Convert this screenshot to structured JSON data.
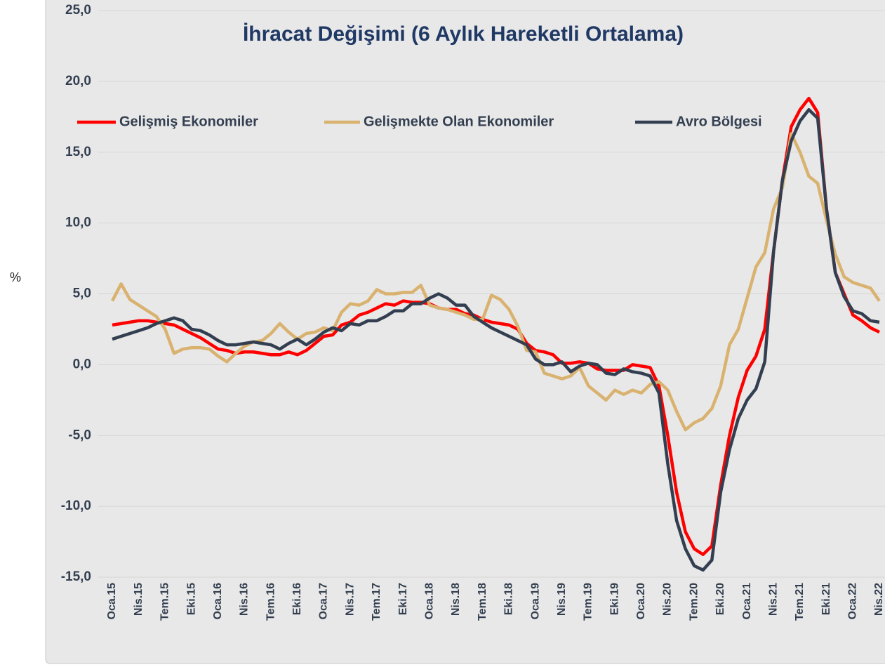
{
  "chart_data": {
    "type": "line",
    "title": "İhracat Değişimi (6 Aylık Hareketli Ortalama)",
    "y_label": "%",
    "categories": [
      "Oca.15",
      null,
      null,
      "Nis.15",
      null,
      null,
      "Tem.15",
      null,
      null,
      "Eki.15",
      null,
      null,
      "Oca.16",
      null,
      null,
      "Nis.16",
      null,
      null,
      "Tem.16",
      null,
      null,
      "Eki.16",
      null,
      null,
      "Oca.17",
      null,
      null,
      "Nis.17",
      null,
      null,
      "Tem.17",
      null,
      null,
      "Eki.17",
      null,
      null,
      "Oca.18",
      null,
      null,
      "Nis.18",
      null,
      null,
      "Tem.18",
      null,
      null,
      "Eki.18",
      null,
      null,
      "Oca.19",
      null,
      null,
      "Nis.19",
      null,
      null,
      "Tem.19",
      null,
      null,
      "Eki.19",
      null,
      null,
      "Oca.20",
      null,
      null,
      "Nis.20",
      null,
      null,
      "Tem.20",
      null,
      null,
      "Eki.20",
      null,
      null,
      "Oca.21",
      null,
      null,
      "Nis.21",
      null,
      null,
      "Tem.21",
      null,
      null,
      "Eki.21",
      null,
      null,
      "Oca.22",
      null,
      null,
      "Nis.22"
    ],
    "series": [
      {
        "name": "Gelişmiş Ekonomiler",
        "color": "#ff0000",
        "values": [
          2.8,
          2.9,
          3.0,
          3.1,
          3.1,
          3.0,
          2.9,
          2.8,
          2.5,
          2.2,
          1.9,
          1.5,
          1.1,
          1.0,
          0.8,
          0.9,
          0.9,
          0.8,
          0.7,
          0.7,
          0.9,
          0.7,
          1.0,
          1.5,
          2.0,
          2.1,
          2.8,
          3.0,
          3.5,
          3.7,
          4.0,
          4.3,
          4.2,
          4.5,
          4.4,
          4.4,
          4.3,
          4.0,
          3.9,
          3.9,
          3.6,
          3.5,
          3.2,
          3.0,
          2.9,
          2.8,
          2.5,
          1.5,
          1.0,
          0.9,
          0.7,
          0.1,
          0.1,
          0.2,
          0.1,
          -0.3,
          -0.4,
          -0.4,
          -0.4,
          0.0,
          -0.1,
          -0.2,
          -1.5,
          -5.0,
          -9.0,
          -11.8,
          -13.0,
          -13.4,
          -12.8,
          -8.5,
          -5.0,
          -2.3,
          -0.4,
          0.6,
          2.5,
          8.0,
          13.0,
          16.8,
          18.0,
          18.8,
          17.8,
          11.0,
          6.5,
          5.0,
          3.5,
          3.1,
          2.6,
          2.3
        ]
      },
      {
        "name": "Gelişmekte Olan Ekonomiler",
        "color": "#d9b26f",
        "values": [
          4.5,
          5.7,
          4.6,
          4.2,
          3.8,
          3.4,
          2.5,
          0.8,
          1.1,
          1.2,
          1.2,
          1.1,
          0.6,
          0.2,
          0.8,
          1.3,
          1.6,
          1.7,
          2.2,
          2.9,
          2.3,
          1.8,
          2.2,
          2.3,
          2.6,
          2.4,
          3.7,
          4.3,
          4.2,
          4.5,
          5.3,
          5.0,
          5.0,
          5.1,
          5.1,
          5.6,
          4.2,
          4.0,
          3.9,
          3.7,
          3.5,
          3.2,
          3.2,
          4.9,
          4.6,
          3.9,
          2.7,
          1.0,
          0.9,
          -0.6,
          -0.8,
          -1.0,
          -0.8,
          -0.2,
          -1.5,
          -2.0,
          -2.5,
          -1.8,
          -2.1,
          -1.8,
          -2.0,
          -1.4,
          -1.2,
          -1.8,
          -3.3,
          -4.6,
          -4.1,
          -3.8,
          -3.1,
          -1.5,
          1.4,
          2.5,
          4.7,
          6.9,
          7.9,
          11.0,
          12.5,
          16.3,
          15.0,
          13.3,
          12.8,
          10.2,
          7.8,
          6.2,
          5.8,
          5.6,
          5.4,
          4.5
        ]
      },
      {
        "name": "Avro Bölgesi",
        "color": "#333f50",
        "values": [
          1.8,
          2.0,
          2.2,
          2.4,
          2.6,
          2.9,
          3.1,
          3.3,
          3.1,
          2.5,
          2.4,
          2.1,
          1.7,
          1.4,
          1.4,
          1.5,
          1.6,
          1.5,
          1.4,
          1.1,
          1.5,
          1.8,
          1.4,
          1.8,
          2.3,
          2.6,
          2.4,
          2.9,
          2.8,
          3.1,
          3.1,
          3.4,
          3.8,
          3.8,
          4.3,
          4.3,
          4.7,
          5.0,
          4.7,
          4.2,
          4.2,
          3.4,
          3.0,
          2.6,
          2.3,
          2.0,
          1.7,
          1.4,
          0.4,
          0.0,
          0.0,
          0.2,
          -0.5,
          -0.1,
          0.1,
          0.0,
          -0.6,
          -0.7,
          -0.3,
          -0.5,
          -0.6,
          -0.8,
          -2.0,
          -7.0,
          -11.0,
          -13.0,
          -14.2,
          -14.5,
          -13.8,
          -9.0,
          -6.0,
          -3.8,
          -2.5,
          -1.7,
          0.2,
          8.0,
          13.0,
          15.8,
          17.2,
          18.0,
          17.4,
          11.0,
          6.5,
          4.8,
          3.8,
          3.6,
          3.1,
          3.0
        ]
      }
    ],
    "ylim": [
      -15,
      25
    ],
    "yticks": [
      {
        "value": -15,
        "label": "-15,0"
      },
      {
        "value": -10,
        "label": "-10,0"
      },
      {
        "value": -5,
        "label": "-5,0"
      },
      {
        "value": 0,
        "label": "0,0"
      },
      {
        "value": 5,
        "label": "5,0"
      },
      {
        "value": 10,
        "label": "10,0"
      },
      {
        "value": 15,
        "label": "15,0"
      },
      {
        "value": 20,
        "label": "20,0"
      },
      {
        "value": 25,
        "label": "25,0"
      }
    ],
    "grid": true
  }
}
